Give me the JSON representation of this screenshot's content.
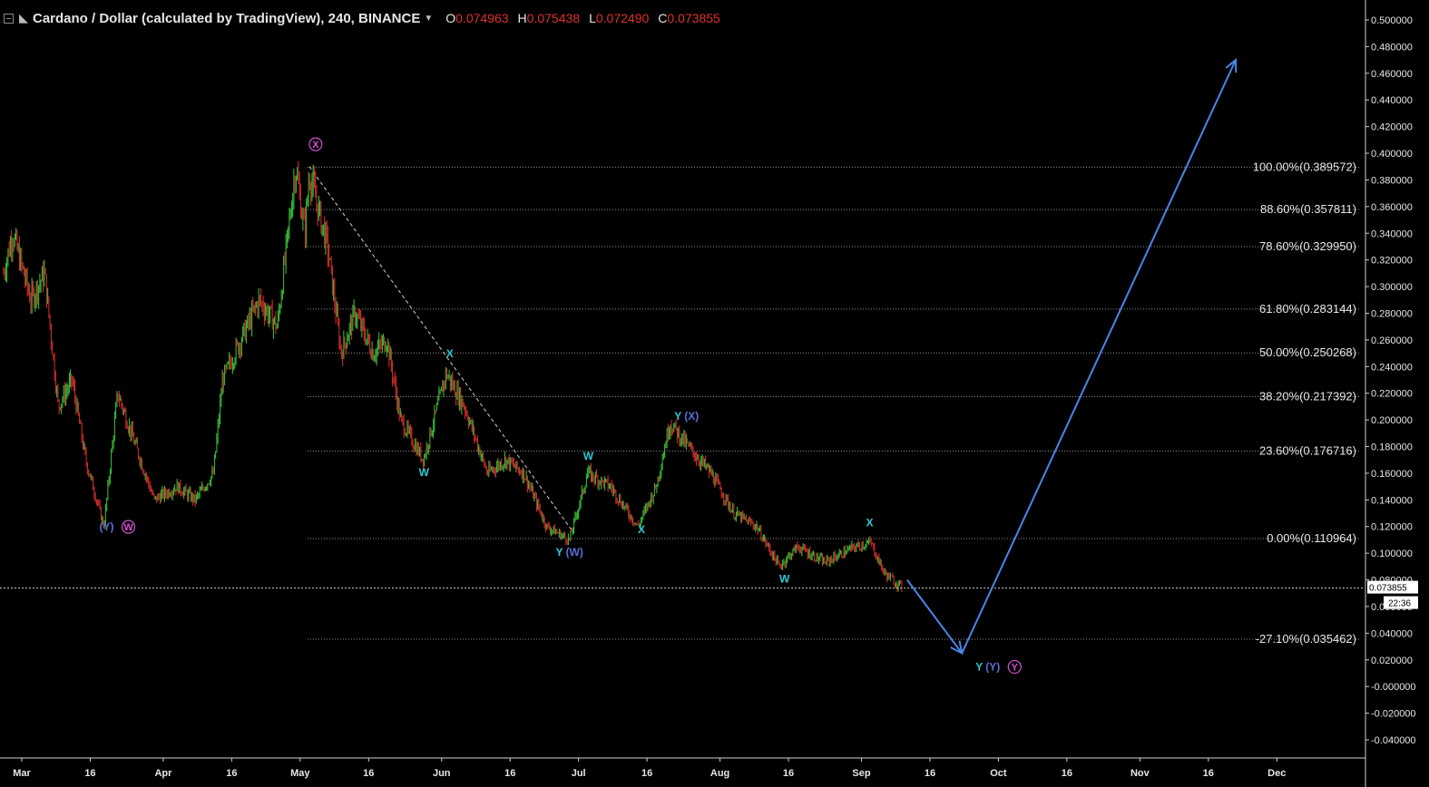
{
  "header": {
    "title": "Cardano / Dollar (calculated by TradingView), 240, BINANCE",
    "ohlc": [
      {
        "k": "O",
        "v": "0.074963"
      },
      {
        "k": "H",
        "v": "0.075438"
      },
      {
        "k": "L",
        "v": "0.072490"
      },
      {
        "k": "C",
        "v": "0.073855"
      }
    ]
  },
  "colors": {
    "background": "#000000",
    "candle_up": "#3bc93b",
    "candle_down": "#e0312e",
    "arrow": "#4a86e8",
    "wave_cyan": "#2ec9d6",
    "wave_blue": "#5b6fd8",
    "wave_magenta": "#d451d4",
    "fib_line": "#9a9a9a"
  },
  "chart_data": {
    "type": "line",
    "ylim": [
      -0.045,
      0.51
    ],
    "y_ticks": [
      "0.500000",
      "0.480000",
      "0.460000",
      "0.440000",
      "0.420000",
      "0.400000",
      "0.380000",
      "0.360000",
      "0.340000",
      "0.320000",
      "0.300000",
      "0.280000",
      "0.260000",
      "0.240000",
      "0.220000",
      "0.200000",
      "0.180000",
      "0.160000",
      "0.140000",
      "0.120000",
      "0.100000",
      "0.080000",
      "0.060000",
      "0.040000",
      "0.020000",
      "-0.000000",
      "-0.020000",
      "-0.040000"
    ],
    "y_tick_values": [
      0.5,
      0.48,
      0.46,
      0.44,
      0.42,
      0.4,
      0.38,
      0.36,
      0.34,
      0.32,
      0.3,
      0.28,
      0.26,
      0.24,
      0.22,
      0.2,
      0.18,
      0.16,
      0.14,
      0.12,
      0.1,
      0.08,
      0.06,
      0.04,
      0.02,
      0,
      -0.02,
      -0.04
    ],
    "x_range": [
      "Feb 25",
      "Dec 10"
    ],
    "x_ticks": [
      {
        "label": "Mar",
        "date": "Mar 1"
      },
      {
        "label": "16",
        "date": "Mar 16"
      },
      {
        "label": "Apr",
        "date": "Apr 1"
      },
      {
        "label": "16",
        "date": "Apr 16"
      },
      {
        "label": "May",
        "date": "May 1"
      },
      {
        "label": "16",
        "date": "May 16"
      },
      {
        "label": "Jun",
        "date": "Jun 1"
      },
      {
        "label": "16",
        "date": "Jun 16"
      },
      {
        "label": "Jul",
        "date": "Jul 1"
      },
      {
        "label": "16",
        "date": "Jul 16"
      },
      {
        "label": "Aug",
        "date": "Aug 1"
      },
      {
        "label": "16",
        "date": "Aug 16"
      },
      {
        "label": "Sep",
        "date": "Sep 1"
      },
      {
        "label": "16",
        "date": "Sep 16"
      },
      {
        "label": "Oct",
        "date": "Oct 1"
      },
      {
        "label": "16",
        "date": "Oct 16"
      },
      {
        "label": "Nov",
        "date": "Nov 1"
      },
      {
        "label": "16",
        "date": "Nov 16"
      },
      {
        "label": "Dec",
        "date": "Dec 1"
      }
    ],
    "price_path": [
      {
        "x": "Feb 25",
        "y": 0.31
      },
      {
        "x": "Feb 27",
        "y": 0.34
      },
      {
        "x": "Mar 3",
        "y": 0.29
      },
      {
        "x": "Mar 6",
        "y": 0.31
      },
      {
        "x": "Mar 9",
        "y": 0.21
      },
      {
        "x": "Mar 12",
        "y": 0.23
      },
      {
        "x": "Mar 15",
        "y": 0.17
      },
      {
        "x": "Mar 19",
        "y": 0.12
      },
      {
        "x": "Mar 22",
        "y": 0.22
      },
      {
        "x": "Mar 26",
        "y": 0.18
      },
      {
        "x": "Mar 30",
        "y": 0.14
      },
      {
        "x": "Apr 4",
        "y": 0.15
      },
      {
        "x": "Apr 8",
        "y": 0.14
      },
      {
        "x": "Apr 12",
        "y": 0.16
      },
      {
        "x": "Apr 14",
        "y": 0.23
      },
      {
        "x": "Apr 18",
        "y": 0.26
      },
      {
        "x": "Apr 22",
        "y": 0.29
      },
      {
        "x": "Apr 26",
        "y": 0.27
      },
      {
        "x": "Apr 30",
        "y": 0.39
      },
      {
        "x": "May 2",
        "y": 0.34
      },
      {
        "x": "May 3",
        "y": 0.385
      },
      {
        "x": "May 7",
        "y": 0.33
      },
      {
        "x": "May 10",
        "y": 0.25
      },
      {
        "x": "May 13",
        "y": 0.28
      },
      {
        "x": "May 17",
        "y": 0.25
      },
      {
        "x": "May 20",
        "y": 0.26
      },
      {
        "x": "May 23",
        "y": 0.2
      },
      {
        "x": "May 28",
        "y": 0.17
      },
      {
        "x": "Jun 2",
        "y": 0.235
      },
      {
        "x": "Jun 6",
        "y": 0.21
      },
      {
        "x": "Jun 11",
        "y": 0.16
      },
      {
        "x": "Jun 15",
        "y": 0.17
      },
      {
        "x": "Jun 19",
        "y": 0.16
      },
      {
        "x": "Jun 24",
        "y": 0.12
      },
      {
        "x": "Jun 29",
        "y": 0.11
      },
      {
        "x": "Jul 3",
        "y": 0.16
      },
      {
        "x": "Jul 8",
        "y": 0.15
      },
      {
        "x": "Jul 14",
        "y": 0.12
      },
      {
        "x": "Jul 18",
        "y": 0.15
      },
      {
        "x": "Jul 21",
        "y": 0.198
      },
      {
        "x": "Jul 25",
        "y": 0.18
      },
      {
        "x": "Jul 30",
        "y": 0.16
      },
      {
        "x": "Aug 4",
        "y": 0.13
      },
      {
        "x": "Aug 9",
        "y": 0.12
      },
      {
        "x": "Aug 14",
        "y": 0.09
      },
      {
        "x": "Aug 18",
        "y": 0.105
      },
      {
        "x": "Aug 24",
        "y": 0.093
      },
      {
        "x": "Aug 30",
        "y": 0.104
      },
      {
        "x": "Sep 3",
        "y": 0.108
      },
      {
        "x": "Sep 6",
        "y": 0.085
      },
      {
        "x": "Sep 10",
        "y": 0.074
      }
    ],
    "current_price": "0.073855",
    "countdown": "22:36",
    "fib_levels": [
      {
        "label": "100.00%(0.389572)",
        "value": 0.389572
      },
      {
        "label": "88.60%(0.357811)",
        "value": 0.357811
      },
      {
        "label": "78.60%(0.329950)",
        "value": 0.32995
      },
      {
        "label": "61.80%(0.283144)",
        "value": 0.283144
      },
      {
        "label": "50.00%(0.250268)",
        "value": 0.250268
      },
      {
        "label": "38.20%(0.217392)",
        "value": 0.217392
      },
      {
        "label": "23.60%(0.176716)",
        "value": 0.176716
      },
      {
        "label": "0.00%(0.110964)",
        "value": 0.110964
      },
      {
        "label": "-27.10%(0.035462)",
        "value": 0.035462
      }
    ],
    "trendline": {
      "from": {
        "x": "May 3",
        "y": 0.39
      },
      "to": {
        "x": "Jun 30",
        "y": 0.115
      }
    },
    "arrows": [
      {
        "from": {
          "x": "Sep 11",
          "y": 0.08
        },
        "to": {
          "x": "Sep 23",
          "y": 0.025
        }
      },
      {
        "from": {
          "x": "Sep 23",
          "y": 0.025
        },
        "to": {
          "x": "Nov 22",
          "y": 0.47
        }
      }
    ],
    "wave_labels": [
      {
        "x": "Mar 18",
        "y": 0.117,
        "parts": [
          {
            "t": "(Y)",
            "c": "blue"
          },
          {
            "t": "W",
            "c": "magenta",
            "circle": true
          }
        ]
      },
      {
        "x": "May 3",
        "y": 0.404,
        "parts": [
          {
            "t": "X",
            "c": "magenta",
            "circle": true
          }
        ]
      },
      {
        "x": "May 27",
        "y": 0.158,
        "parts": [
          {
            "t": "W",
            "c": "cyan"
          }
        ]
      },
      {
        "x": "Jun 2",
        "y": 0.247,
        "parts": [
          {
            "t": "X",
            "c": "cyan"
          }
        ]
      },
      {
        "x": "Jun 26",
        "y": 0.098,
        "parts": [
          {
            "t": "Y",
            "c": "cyan"
          },
          {
            "t": "(W)",
            "c": "blue"
          }
        ]
      },
      {
        "x": "Jul 2",
        "y": 0.17,
        "parts": [
          {
            "t": "W",
            "c": "cyan"
          }
        ]
      },
      {
        "x": "Jul 14",
        "y": 0.115,
        "parts": [
          {
            "t": "X",
            "c": "cyan"
          }
        ]
      },
      {
        "x": "Jul 22",
        "y": 0.2,
        "parts": [
          {
            "t": "Y",
            "c": "cyan"
          },
          {
            "t": "(X)",
            "c": "blue"
          }
        ]
      },
      {
        "x": "Aug 14",
        "y": 0.078,
        "parts": [
          {
            "t": "W",
            "c": "cyan"
          }
        ]
      },
      {
        "x": "Sep 2",
        "y": 0.12,
        "parts": [
          {
            "t": "X",
            "c": "cyan"
          }
        ]
      },
      {
        "x": "Sep 26",
        "y": 0.012,
        "parts": [
          {
            "t": "Y",
            "c": "cyan"
          },
          {
            "t": "(Y)",
            "c": "blue"
          },
          {
            "t": "Y",
            "c": "magenta",
            "circle": true
          }
        ]
      }
    ]
  }
}
